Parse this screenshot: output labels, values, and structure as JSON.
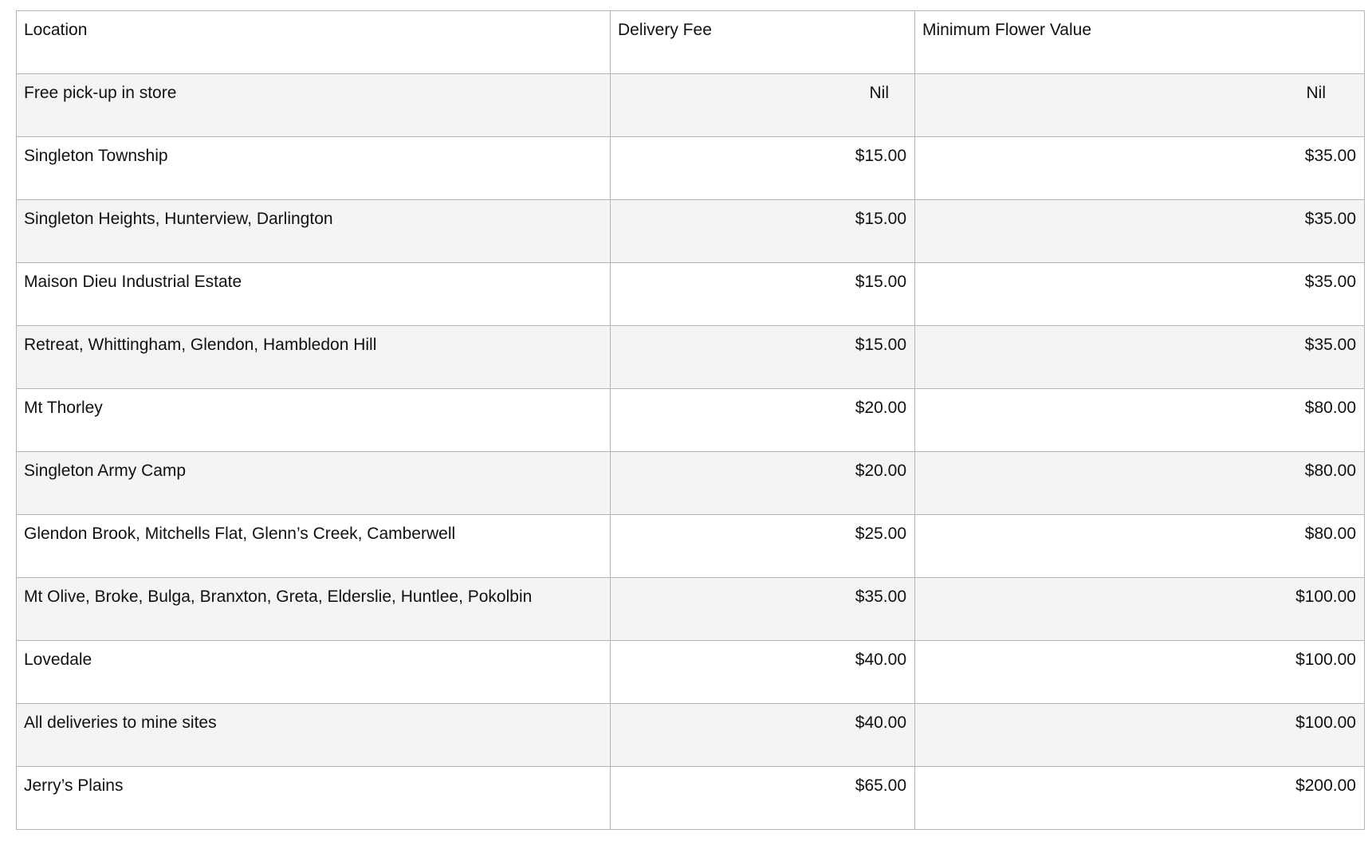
{
  "table": {
    "headers": [
      "Location",
      "Delivery Fee",
      "Minimum Flower Value"
    ],
    "rows": [
      [
        "Free pick-up in store",
        "Nil",
        "Nil"
      ],
      [
        "Singleton Township",
        "$15.00",
        "$35.00"
      ],
      [
        "Singleton Heights, Hunterview, Darlington",
        "$15.00",
        "$35.00"
      ],
      [
        "Maison Dieu Industrial Estate",
        "$15.00",
        "$35.00"
      ],
      [
        "Retreat, Whittingham, Glendon, Hambledon Hill",
        "$15.00",
        "$35.00"
      ],
      [
        "Mt Thorley",
        "$20.00",
        "$80.00"
      ],
      [
        "Singleton Army Camp",
        "$20.00",
        "$80.00"
      ],
      [
        "Glendon Brook, Mitchells Flat, Glenn’s Creek, Camberwell",
        "$25.00",
        "$80.00"
      ],
      [
        "Mt Olive, Broke, Bulga, Branxton, Greta, Elderslie, Huntlee, Pokolbin",
        "$35.00",
        "$100.00"
      ],
      [
        "Lovedale",
        "$40.00",
        "$100.00"
      ],
      [
        "All deliveries to mine sites",
        "$40.00",
        "$100.00"
      ],
      [
        "Jerry’s Plains",
        "$65.00",
        "$200.00"
      ]
    ]
  },
  "colors": {
    "border": "#b4b4b4",
    "alt_row": "#f4f4f4"
  }
}
